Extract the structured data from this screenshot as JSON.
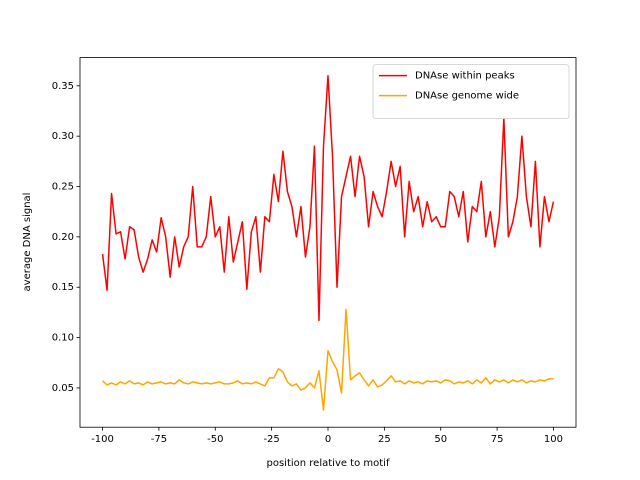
{
  "chart_data": {
    "type": "line",
    "xlabel": "position relative to motif",
    "ylabel": "average DNA signal",
    "x": [
      -100,
      -98,
      -96,
      -94,
      -92,
      -90,
      -88,
      -86,
      -84,
      -82,
      -80,
      -78,
      -76,
      -74,
      -72,
      -70,
      -68,
      -66,
      -64,
      -62,
      -60,
      -58,
      -56,
      -54,
      -52,
      -50,
      -48,
      -46,
      -44,
      -42,
      -40,
      -38,
      -36,
      -34,
      -32,
      -30,
      -28,
      -26,
      -24,
      -22,
      -20,
      -18,
      -16,
      -14,
      -12,
      -10,
      -8,
      -6,
      -4,
      -2,
      0,
      2,
      4,
      6,
      8,
      10,
      12,
      14,
      16,
      18,
      20,
      22,
      24,
      26,
      28,
      30,
      32,
      34,
      36,
      38,
      40,
      42,
      44,
      46,
      48,
      50,
      52,
      54,
      56,
      58,
      60,
      62,
      64,
      66,
      68,
      70,
      72,
      74,
      76,
      78,
      80,
      82,
      84,
      86,
      88,
      90,
      92,
      94,
      96,
      98,
      100
    ],
    "series": [
      {
        "name": "DNAse within peaks",
        "color": "#ff0000",
        "values": [
          0.183,
          0.147,
          0.243,
          0.203,
          0.205,
          0.178,
          0.21,
          0.207,
          0.18,
          0.165,
          0.178,
          0.197,
          0.185,
          0.219,
          0.2,
          0.16,
          0.2,
          0.17,
          0.19,
          0.2,
          0.25,
          0.19,
          0.19,
          0.2,
          0.24,
          0.2,
          0.21,
          0.165,
          0.22,
          0.175,
          0.195,
          0.215,
          0.148,
          0.205,
          0.22,
          0.165,
          0.22,
          0.215,
          0.262,
          0.235,
          0.285,
          0.245,
          0.23,
          0.2,
          0.23,
          0.18,
          0.21,
          0.29,
          0.117,
          0.29,
          0.36,
          0.28,
          0.15,
          0.24,
          0.26,
          0.28,
          0.24,
          0.28,
          0.26,
          0.21,
          0.245,
          0.23,
          0.22,
          0.245,
          0.275,
          0.25,
          0.27,
          0.2,
          0.255,
          0.225,
          0.24,
          0.21,
          0.235,
          0.215,
          0.22,
          0.21,
          0.21,
          0.245,
          0.24,
          0.22,
          0.245,
          0.195,
          0.23,
          0.225,
          0.255,
          0.2,
          0.225,
          0.19,
          0.22,
          0.318,
          0.2,
          0.215,
          0.24,
          0.3,
          0.24,
          0.21,
          0.275,
          0.19,
          0.24,
          0.215,
          0.235
        ]
      },
      {
        "name": "DNAse genome wide",
        "color": "#ffa500",
        "values": [
          0.057,
          0.053,
          0.055,
          0.053,
          0.056,
          0.054,
          0.057,
          0.054,
          0.055,
          0.053,
          0.056,
          0.054,
          0.055,
          0.056,
          0.054,
          0.055,
          0.054,
          0.058,
          0.055,
          0.054,
          0.056,
          0.055,
          0.054,
          0.055,
          0.054,
          0.055,
          0.056,
          0.054,
          0.054,
          0.055,
          0.057,
          0.054,
          0.055,
          0.054,
          0.056,
          0.054,
          0.052,
          0.06,
          0.06,
          0.069,
          0.066,
          0.056,
          0.052,
          0.054,
          0.048,
          0.05,
          0.055,
          0.05,
          0.067,
          0.028,
          0.087,
          0.076,
          0.068,
          0.045,
          0.128,
          0.058,
          0.062,
          0.065,
          0.058,
          0.052,
          0.058,
          0.051,
          0.053,
          0.057,
          0.062,
          0.056,
          0.057,
          0.054,
          0.057,
          0.055,
          0.056,
          0.054,
          0.057,
          0.056,
          0.057,
          0.055,
          0.058,
          0.057,
          0.054,
          0.056,
          0.055,
          0.057,
          0.054,
          0.058,
          0.055,
          0.06,
          0.054,
          0.058,
          0.056,
          0.058,
          0.055,
          0.058,
          0.056,
          0.058,
          0.055,
          0.057,
          0.056,
          0.058,
          0.057,
          0.059,
          0.059
        ]
      }
    ],
    "xlim": [
      -110,
      110
    ],
    "ylim": [
      0.011,
      0.378
    ],
    "xticks": [
      -100,
      -75,
      -50,
      -25,
      0,
      25,
      50,
      75,
      100
    ],
    "yticks": [
      0.05,
      {
        "value": 0.1,
        "label": "0.10"
      },
      0.15,
      {
        "value": 0.2,
        "label": "0.20"
      },
      0.25,
      {
        "value": 0.3,
        "label": "0.30"
      },
      0.35
    ],
    "legend": "upper right"
  }
}
